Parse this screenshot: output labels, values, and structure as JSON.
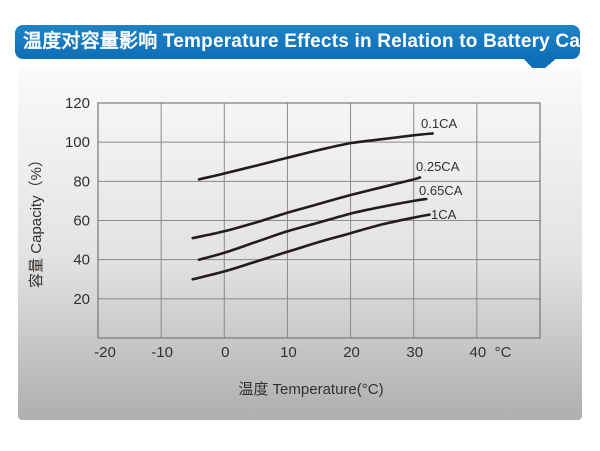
{
  "header": {
    "title": "温度对容量影响 Temperature Effects in Relation to Battery Capacity",
    "background": "#1478bd",
    "text_color": "#ffffff"
  },
  "chart_data": {
    "type": "line",
    "title": "",
    "xlabel": "温度  Temperature(°C)",
    "ylabel": "容量 Capacity（%）",
    "x_unit": "°C",
    "xlim": [
      -20,
      50
    ],
    "ylim": [
      0,
      120
    ],
    "x_ticks": [
      -20,
      -10,
      0,
      10,
      20,
      30,
      40
    ],
    "y_ticks": [
      20,
      40,
      60,
      80,
      100,
      120
    ],
    "grid": true,
    "legend_position": "inline-right-labels",
    "series": [
      {
        "name": "0.1CA",
        "x": [
          -4,
          0,
          5,
          10,
          15,
          20,
          25,
          30,
          33
        ],
        "y": [
          81,
          84,
          88,
          92,
          96,
          99.5,
          101.5,
          103.5,
          104.5
        ]
      },
      {
        "name": "0.25CA",
        "x": [
          -5,
          0,
          5,
          10,
          15,
          20,
          25,
          30,
          31
        ],
        "y": [
          51,
          54.5,
          59,
          64,
          68.5,
          73,
          77,
          81,
          82
        ]
      },
      {
        "name": "0.65CA",
        "x": [
          -4,
          0,
          5,
          10,
          15,
          20,
          25,
          30,
          32
        ],
        "y": [
          40,
          43.5,
          49,
          54.5,
          59,
          63.5,
          67,
          70,
          71
        ]
      },
      {
        "name": "1CA",
        "x": [
          -5,
          0,
          5,
          10,
          15,
          20,
          25,
          30,
          32.5
        ],
        "y": [
          30,
          34,
          39,
          44,
          49,
          53.5,
          58,
          61.5,
          63
        ]
      }
    ],
    "colors": {
      "line": "#241c19",
      "grid": "#8a8a8a",
      "border": "#787878",
      "text": "#35302c"
    }
  }
}
